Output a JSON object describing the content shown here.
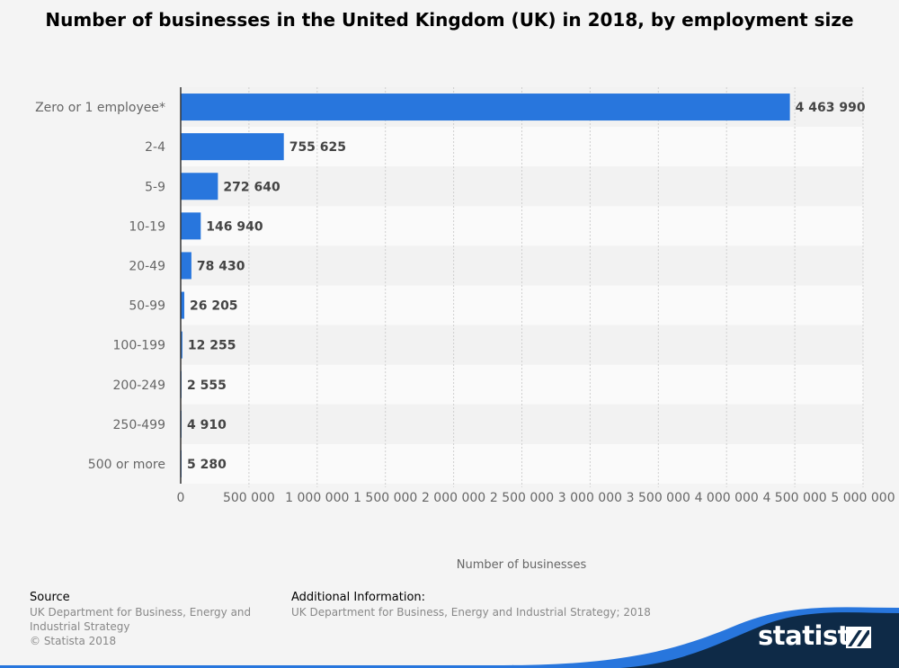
{
  "chart_data": {
    "type": "bar",
    "orientation": "horizontal",
    "title": "Number of businesses in the United Kingdom (UK) in 2018, by employment size",
    "xlabel": "Number of businesses",
    "ylabel": "",
    "categories": [
      "Zero or 1 employee*",
      "2-4",
      "5-9",
      "10-19",
      "20-49",
      "50-99",
      "100-199",
      "200-249",
      "250-499",
      "500 or more"
    ],
    "values": [
      4463990,
      755625,
      272640,
      146940,
      78430,
      26205,
      12255,
      2555,
      4910,
      5280
    ],
    "value_labels": [
      "4 463 990",
      "755 625",
      "272 640",
      "146 940",
      "78 430",
      "26 205",
      "12 255",
      "2 555",
      "4 910",
      "5 280"
    ],
    "xlim": [
      0,
      5000000
    ],
    "xticks": [
      0,
      500000,
      1000000,
      1500000,
      2000000,
      2500000,
      3000000,
      3500000,
      4000000,
      4500000,
      5000000
    ],
    "xtick_labels": [
      "0",
      "500 000",
      "1 000 000",
      "1 500 000",
      "2 000 000",
      "2 500 000",
      "3 000 000",
      "3 500 000",
      "4 000 000",
      "4 500 000",
      "5 000 000"
    ],
    "grid": true,
    "bar_color": "#2876dd"
  },
  "footer": {
    "source_heading": "Source",
    "source_line1": "UK Department for Business, Energy and",
    "source_line2": "Industrial Strategy",
    "copyright": "© Statista 2018",
    "additional_heading": "Additional Information:",
    "additional_text": "UK Department for Business, Energy and Industrial Strategy; 2018"
  },
  "brand": {
    "name": "statista",
    "accent": "#0e2a47",
    "wave_color": "#2876dd"
  }
}
